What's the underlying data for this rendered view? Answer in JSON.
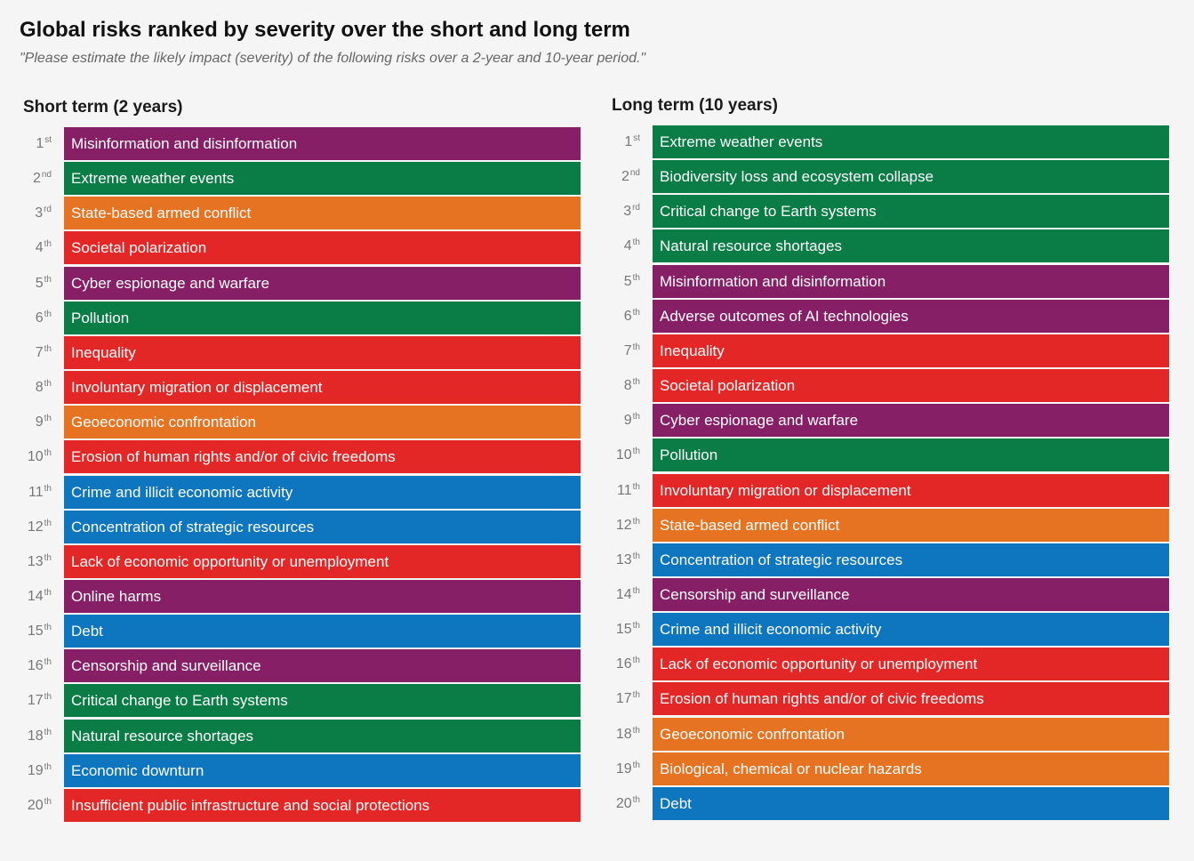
{
  "title": "Global risks ranked by severity over the short and long term",
  "subtitle": "\"Please estimate the likely impact (severity) of the following risks over a 2-year and 10-year period.\"",
  "colors": {
    "purple": "#871f66",
    "green": "#0a7c45",
    "orange": "#e67321",
    "red": "#e32726",
    "blue": "#0e75bf"
  },
  "chart_data": [
    {
      "type": "table",
      "title": "Short term (2 years)",
      "items": [
        {
          "rank": "1",
          "suffix": "st",
          "label": "Misinformation and disinformation",
          "color": "purple"
        },
        {
          "rank": "2",
          "suffix": "nd",
          "label": "Extreme weather events",
          "color": "green"
        },
        {
          "rank": "3",
          "suffix": "rd",
          "label": "State-based armed conflict",
          "color": "orange"
        },
        {
          "rank": "4",
          "suffix": "th",
          "label": "Societal polarization",
          "color": "red"
        },
        {
          "rank": "5",
          "suffix": "th",
          "label": "Cyber espionage and warfare",
          "color": "purple"
        },
        {
          "rank": "6",
          "suffix": "th",
          "label": "Pollution",
          "color": "green"
        },
        {
          "rank": "7",
          "suffix": "th",
          "label": "Inequality",
          "color": "red"
        },
        {
          "rank": "8",
          "suffix": "th",
          "label": "Involuntary migration or displacement",
          "color": "red"
        },
        {
          "rank": "9",
          "suffix": "th",
          "label": "Geoeconomic confrontation",
          "color": "orange"
        },
        {
          "rank": "10",
          "suffix": "th",
          "label": "Erosion of human rights and/or of civic freedoms",
          "color": "red"
        },
        {
          "rank": "11",
          "suffix": "th",
          "label": "Crime and illicit economic activity",
          "color": "blue"
        },
        {
          "rank": "12",
          "suffix": "th",
          "label": "Concentration of strategic resources",
          "color": "blue"
        },
        {
          "rank": "13",
          "suffix": "th",
          "label": "Lack of economic opportunity or unemployment",
          "color": "red"
        },
        {
          "rank": "14",
          "suffix": "th",
          "label": "Online harms",
          "color": "purple"
        },
        {
          "rank": "15",
          "suffix": "th",
          "label": "Debt",
          "color": "blue"
        },
        {
          "rank": "16",
          "suffix": "th",
          "label": "Censorship and surveillance",
          "color": "purple"
        },
        {
          "rank": "17",
          "suffix": "th",
          "label": "Critical change to Earth systems",
          "color": "green"
        },
        {
          "rank": "18",
          "suffix": "th",
          "label": "Natural resource shortages",
          "color": "green"
        },
        {
          "rank": "19",
          "suffix": "th",
          "label": "Economic downturn",
          "color": "blue"
        },
        {
          "rank": "20",
          "suffix": "th",
          "label": "Insufficient public infrastructure and social protections",
          "color": "red"
        }
      ]
    },
    {
      "type": "table",
      "title": "Long term (10 years)",
      "items": [
        {
          "rank": "1",
          "suffix": "st",
          "label": "Extreme weather events",
          "color": "green"
        },
        {
          "rank": "2",
          "suffix": "nd",
          "label": "Biodiversity loss and ecosystem collapse",
          "color": "green"
        },
        {
          "rank": "3",
          "suffix": "rd",
          "label": "Critical change to Earth systems",
          "color": "green"
        },
        {
          "rank": "4",
          "suffix": "th",
          "label": "Natural resource shortages",
          "color": "green"
        },
        {
          "rank": "5",
          "suffix": "th",
          "label": "Misinformation and disinformation",
          "color": "purple"
        },
        {
          "rank": "6",
          "suffix": "th",
          "label": "Adverse outcomes of AI technologies",
          "color": "purple"
        },
        {
          "rank": "7",
          "suffix": "th",
          "label": "Inequality",
          "color": "red"
        },
        {
          "rank": "8",
          "suffix": "th",
          "label": "Societal polarization",
          "color": "red"
        },
        {
          "rank": "9",
          "suffix": "th",
          "label": "Cyber espionage and warfare",
          "color": "purple"
        },
        {
          "rank": "10",
          "suffix": "th",
          "label": "Pollution",
          "color": "green"
        },
        {
          "rank": "11",
          "suffix": "th",
          "label": "Involuntary migration or displacement",
          "color": "red"
        },
        {
          "rank": "12",
          "suffix": "th",
          "label": "State-based armed conflict",
          "color": "orange"
        },
        {
          "rank": "13",
          "suffix": "th",
          "label": "Concentration of strategic resources",
          "color": "blue"
        },
        {
          "rank": "14",
          "suffix": "th",
          "label": "Censorship and surveillance",
          "color": "purple"
        },
        {
          "rank": "15",
          "suffix": "th",
          "label": "Crime and illicit economic activity",
          "color": "blue"
        },
        {
          "rank": "16",
          "suffix": "th",
          "label": "Lack of economic opportunity or unemployment",
          "color": "red"
        },
        {
          "rank": "17",
          "suffix": "th",
          "label": "Erosion of human rights and/or of civic freedoms",
          "color": "red"
        },
        {
          "rank": "18",
          "suffix": "th",
          "label": "Geoeconomic confrontation",
          "color": "orange"
        },
        {
          "rank": "19",
          "suffix": "th",
          "label": "Biological, chemical or nuclear hazards",
          "color": "orange"
        },
        {
          "rank": "20",
          "suffix": "th",
          "label": "Debt",
          "color": "blue"
        }
      ]
    }
  ]
}
